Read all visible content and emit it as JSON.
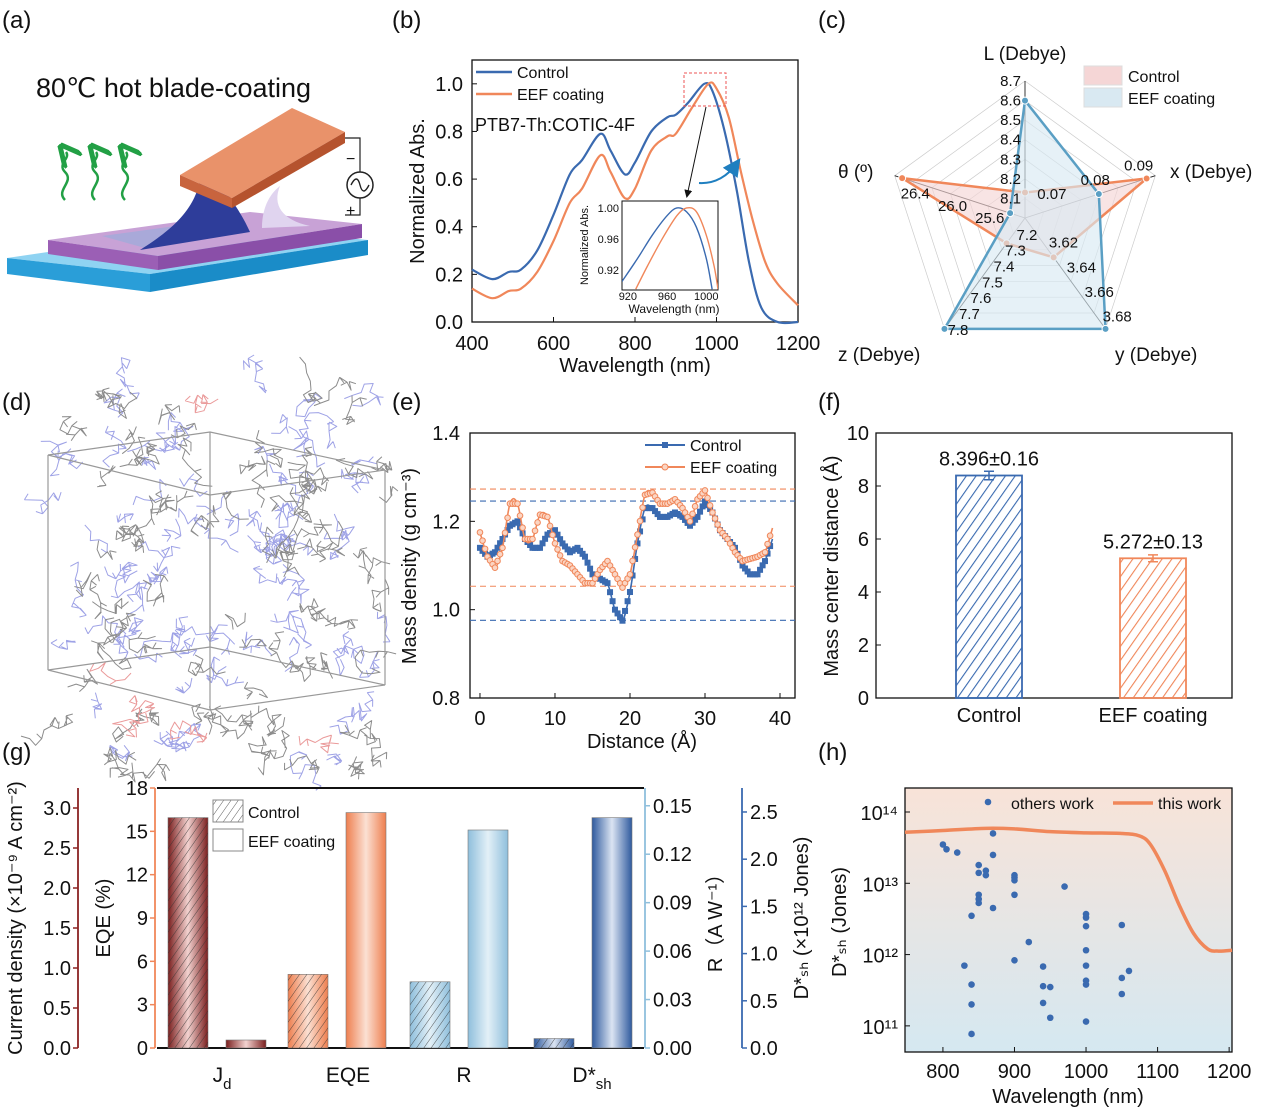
{
  "panel_labels": [
    "(a)",
    "(b)",
    "(c)",
    "(d)",
    "(e)",
    "(f)",
    "(g)",
    "(h)"
  ],
  "illustration": {
    "caption": "80℃ hot blade-coating",
    "minus": "−",
    "plus": "+"
  },
  "colors": {
    "control_blue": "#3a6ab0",
    "eef_orange": "#f0875a",
    "jd_red": "#8b2323",
    "r_lightblue": "#8fbfdc"
  },
  "chart_data": [
    {
      "panel": "(b)",
      "type": "line",
      "xlabel": "Wavelength (nm)",
      "ylabel": "Normalized Abs.",
      "xlim": [
        400,
        1200
      ],
      "ylim": [
        0,
        1.1
      ],
      "xticks": [
        "400",
        "600",
        "800",
        "1000",
        "1200"
      ],
      "yticks": [
        "0.0",
        "0.2",
        "0.4",
        "0.6",
        "0.8",
        "1.0"
      ],
      "annotation": "PTB7-Th:COTIC-4F",
      "legend": "top-left",
      "series": [
        {
          "name": "Control",
          "color": "#3a6ab0",
          "x": [
            400,
            450,
            490,
            520,
            560,
            600,
            640,
            670,
            715,
            740,
            775,
            800,
            840,
            880,
            900,
            930,
            970,
            990,
            1020,
            1050,
            1080,
            1110,
            1150,
            1200
          ],
          "y": [
            0.22,
            0.18,
            0.21,
            0.22,
            0.3,
            0.45,
            0.62,
            0.68,
            0.79,
            0.72,
            0.62,
            0.67,
            0.8,
            0.86,
            0.87,
            0.92,
            1.0,
            0.97,
            0.8,
            0.55,
            0.25,
            0.06,
            0.0,
            0.0
          ]
        },
        {
          "name": "EEF coating",
          "color": "#f0875a",
          "x": [
            400,
            450,
            490,
            520,
            560,
            600,
            640,
            670,
            715,
            740,
            775,
            800,
            840,
            880,
            900,
            940,
            980,
            1000,
            1030,
            1060,
            1090,
            1120,
            1150,
            1200
          ],
          "y": [
            0.14,
            0.1,
            0.13,
            0.14,
            0.21,
            0.34,
            0.5,
            0.56,
            0.7,
            0.63,
            0.52,
            0.56,
            0.72,
            0.78,
            0.79,
            0.9,
            1.0,
            0.98,
            0.86,
            0.63,
            0.42,
            0.25,
            0.16,
            0.07
          ]
        }
      ],
      "inset": {
        "xlabel": "Wavelength (nm)",
        "ylabel": "Normalized Abs.",
        "xlim": [
          914,
          1012
        ],
        "ylim": [
          0.894,
          1.009
        ],
        "xticks": [
          "920",
          "960",
          "1000"
        ],
        "yticks": [
          "0.92",
          "0.96",
          "1.00"
        ],
        "series": [
          {
            "name": "Control",
            "x": [
              914,
              930,
              945,
              960,
              970,
              980,
              990,
              1000,
              1006
            ],
            "y": [
              0.905,
              0.935,
              0.965,
              0.99,
              1.0,
              0.995,
              0.975,
              0.935,
              0.895
            ]
          },
          {
            "name": "EEF coating",
            "x": [
              928,
              940,
              955,
              970,
              980,
              990,
              1000,
              1008,
              1012
            ],
            "y": [
              0.895,
              0.925,
              0.96,
              0.99,
              1.0,
              0.995,
              0.965,
              0.925,
              0.895
            ]
          }
        ]
      }
    },
    {
      "panel": "(c)",
      "type": "radar",
      "axes": [
        {
          "label": "L (Debye)",
          "range": [
            8.0,
            8.7
          ],
          "ticks": [
            "8.1",
            "8.2",
            "8.3",
            "8.4",
            "8.5",
            "8.6",
            "8.7"
          ]
        },
        {
          "label": "x (Debye)",
          "range": [
            0.06,
            0.09
          ],
          "ticks": [
            "0.07",
            "0.08",
            "0.09"
          ]
        },
        {
          "label": "y (Debye)",
          "range": [
            3.6,
            3.69
          ],
          "ticks": [
            "3.62",
            "3.64",
            "3.66",
            "3.68"
          ]
        },
        {
          "label": "z (Debye)",
          "range": [
            7.1,
            7.8
          ],
          "ticks": [
            "7.2",
            "7.3",
            "7.4",
            "7.5",
            "7.6",
            "7.7",
            "7.8"
          ]
        },
        {
          "label": "θ (º)",
          "range": [
            25.2,
            26.6
          ],
          "ticks": [
            "25.6",
            "26.0",
            "26.4"
          ]
        }
      ],
      "legend": "top-right",
      "series": [
        {
          "name": "Control",
          "color": "#f0875a",
          "fill": "#f5d6d6",
          "values": [
            8.13,
            0.088,
            3.632,
            7.26,
            26.52
          ]
        },
        {
          "name": "EEF coating",
          "color": "#5a9fc4",
          "fill": "#d9e9f2",
          "values": [
            8.6,
            0.077,
            3.69,
            7.8,
            25.36
          ]
        }
      ]
    },
    {
      "panel": "(e)",
      "type": "line",
      "xlabel": "Distance (Å)",
      "ylabel": "Mass density (g cm⁻³)",
      "xlim": [
        -1.33,
        42
      ],
      "ylim": [
        0.8,
        1.4
      ],
      "xticks": [
        "0",
        "10",
        "20",
        "30",
        "40"
      ],
      "yticks": [
        "0.8",
        "1.0",
        "1.2",
        "1.4"
      ],
      "legend": "top-right",
      "reference_lines": [
        {
          "color": "#f0875a",
          "y": 1.273
        },
        {
          "color": "#3a6ab0",
          "y": 1.246
        },
        {
          "color": "#f0875a",
          "y": 1.053
        },
        {
          "color": "#3a6ab0",
          "y": 0.976
        }
      ],
      "series": [
        {
          "name": "Control",
          "color": "#3a6ab0",
          "marker": "square",
          "x": [
            0,
            1,
            2,
            3,
            4,
            5,
            6,
            7,
            8,
            9,
            10,
            11,
            12,
            13,
            14,
            15,
            16,
            17,
            18,
            19,
            20,
            21,
            22,
            23,
            24,
            25,
            26,
            27,
            28,
            29,
            30,
            31,
            32,
            33,
            34,
            35,
            36,
            37,
            38,
            39
          ],
          "y": [
            1.14,
            1.12,
            1.13,
            1.16,
            1.19,
            1.2,
            1.16,
            1.14,
            1.14,
            1.17,
            1.18,
            1.15,
            1.13,
            1.14,
            1.12,
            1.08,
            1.07,
            1.06,
            1.0,
            0.975,
            1.04,
            1.15,
            1.23,
            1.23,
            1.21,
            1.21,
            1.22,
            1.21,
            1.19,
            1.21,
            1.245,
            1.22,
            1.18,
            1.16,
            1.14,
            1.1,
            1.08,
            1.08,
            1.11,
            1.16
          ]
        },
        {
          "name": "EEF coating",
          "color": "#f0875a",
          "marker": "circle",
          "x": [
            0,
            1,
            2,
            3,
            4,
            5,
            6,
            7,
            8,
            9,
            10,
            11,
            12,
            13,
            14,
            15,
            16,
            17,
            18,
            19,
            20,
            21,
            22,
            23,
            24,
            25,
            26,
            27,
            28,
            29,
            30,
            31,
            32,
            33,
            34,
            35,
            36,
            37,
            38,
            39
          ],
          "y": [
            1.175,
            1.12,
            1.095,
            1.14,
            1.24,
            1.24,
            1.16,
            1.16,
            1.215,
            1.21,
            1.15,
            1.11,
            1.1,
            1.08,
            1.06,
            1.06,
            1.09,
            1.11,
            1.08,
            1.05,
            1.08,
            1.17,
            1.26,
            1.265,
            1.24,
            1.24,
            1.25,
            1.23,
            1.2,
            1.25,
            1.27,
            1.22,
            1.18,
            1.16,
            1.13,
            1.11,
            1.115,
            1.12,
            1.13,
            1.185
          ]
        }
      ]
    },
    {
      "panel": "(f)",
      "type": "bar",
      "ylabel": "Mass center  distance (Å)",
      "ylim": [
        0,
        10
      ],
      "yticks": [
        "0",
        "2",
        "4",
        "6",
        "8",
        "10"
      ],
      "categories": [
        "Control",
        "EEF coating"
      ],
      "values": [
        8.396,
        5.272
      ],
      "errors": [
        0.16,
        0.13
      ],
      "data_labels": [
        "8.396±0.16",
        "5.272±0.13"
      ],
      "colors": [
        "#3a6ab0",
        "#f0875a"
      ]
    },
    {
      "panel": "(g)",
      "type": "bar",
      "categories": [
        {
          "main": "J",
          "sub": "d"
        },
        {
          "main": "EQE",
          "sub": ""
        },
        {
          "main": "R",
          "sub": ""
        },
        {
          "main": "D*",
          "sub": "sh"
        }
      ],
      "legend": "top-left",
      "legend_entries": [
        "Control",
        "EEF coating"
      ],
      "axes": [
        {
          "label": "Current density (×10⁻⁹ A cm⁻²)",
          "color": "#8b2323",
          "range": [
            0,
            3.25
          ],
          "ticks": [
            "0.0",
            "0.5",
            "1.0",
            "1.5",
            "2.0",
            "2.5",
            "3.0"
          ]
        },
        {
          "label": "EQE (%)",
          "color": "#f0875a",
          "range": [
            0,
            18
          ],
          "ticks": [
            "0",
            "3",
            "6",
            "9",
            "12",
            "15",
            "18"
          ]
        },
        {
          "label": "R（A W⁻¹）",
          "color": "#8fbfdc",
          "range": [
            0,
            0.161
          ],
          "ticks": [
            "0.00",
            "0.03",
            "0.06",
            "0.09",
            "0.12",
            "0.15"
          ]
        },
        {
          "label": "D*ₛₕ (×10¹² Jones)",
          "color": "#3a6ab0",
          "range": [
            0,
            2.754
          ],
          "ticks": [
            "0.0",
            "0.5",
            "1.0",
            "1.5",
            "2.0",
            "2.5"
          ]
        }
      ],
      "series": [
        {
          "name": "Control",
          "values": [
            2.88,
            5.1,
            0.041,
            0.1
          ]
        },
        {
          "name": "EEF coating",
          "values": [
            0.1,
            16.3,
            0.135,
            2.44
          ]
        }
      ]
    },
    {
      "panel": "(h)",
      "type": "scatter",
      "xlabel": "Wavelength (nm)",
      "ylabel": "D*ₛₕ (Jones)",
      "xlim": [
        747,
        1204
      ],
      "ylim": [
        43000000000.0,
        217000000000000.0
      ],
      "yscale": "log",
      "xticks": [
        "800",
        "900",
        "1000",
        "1100",
        "1200"
      ],
      "yticks": [
        "10¹¹",
        "10¹²",
        "10¹³",
        "10¹⁴"
      ],
      "legend": "top",
      "series": [
        {
          "name": "others work",
          "type": "scatter",
          "color": "#3a6ab0",
          "x": [
            800,
            805,
            820,
            850,
            850,
            860,
            860,
            870,
            870,
            850,
            850,
            850,
            870,
            840,
            900,
            900,
            900,
            900,
            970,
            1000,
            1000,
            1000,
            1050,
            920,
            1000,
            900,
            830,
            940,
            1000,
            1060,
            1050,
            1000,
            1000,
            840,
            940,
            950,
            1050,
            940,
            840,
            950,
            1000,
            840
          ],
          "y": [
            35000000000000.0,
            30000000000000.0,
            27000000000000.0,
            18000000000000.0,
            14000000000000.0,
            15000000000000.0,
            13000000000000.0,
            50000000000000.0,
            25000000000000.0,
            6900000000000.0,
            6000000000000.0,
            5300000000000.0,
            4500000000000.0,
            3500000000000.0,
            13000000000000.0,
            12000000000000.0,
            11000000000000.0,
            6900000000000.0,
            9000000000000.0,
            3700000000000.0,
            3300000000000.0,
            2500000000000.0,
            2600000000000.0,
            1500000000000.0,
            1150000000000.0,
            830000000000.0,
            700000000000.0,
            680000000000.0,
            700000000000.0,
            590000000000.0,
            470000000000.0,
            430000000000.0,
            380000000000.0,
            380000000000.0,
            360000000000.0,
            350000000000.0,
            280000000000.0,
            210000000000.0,
            200000000000.0,
            130000000000.0,
            115000000000.0,
            77000000000.0
          ]
        },
        {
          "name": "this work",
          "type": "line",
          "color": "#f0875a",
          "x": [
            747,
            800,
            860,
            900,
            950,
            1000,
            1050,
            1075,
            1090,
            1110,
            1130,
            1150,
            1170,
            1185,
            1204
          ],
          "y": [
            52000000000000.0,
            55000000000000.0,
            59000000000000.0,
            58000000000000.0,
            53000000000000.0,
            51000000000000.0,
            50000000000000.0,
            46000000000000.0,
            35000000000000.0,
            15000000000000.0,
            5000000000000.0,
            2000000000000.0,
            1200000000000.0,
            1120000000000.0,
            1150000000000.0
          ]
        }
      ]
    }
  ]
}
